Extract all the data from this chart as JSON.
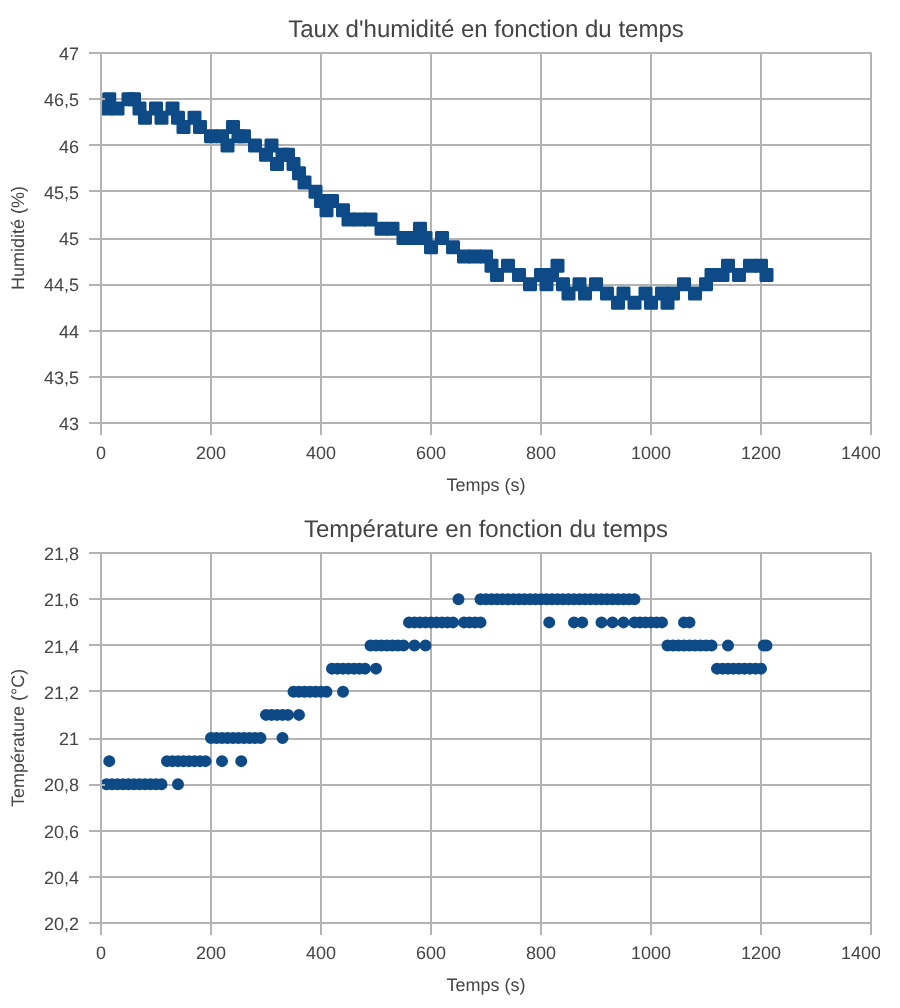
{
  "chart_data": [
    {
      "type": "scatter",
      "title": "Taux d'humidité en fonction du temps",
      "xlabel": "Temps (s)",
      "ylabel": "Humidité (%)",
      "xlim": [
        0,
        1400
      ],
      "xticks": [
        0,
        200,
        400,
        600,
        800,
        1000,
        1200,
        1400
      ],
      "ylim": [
        43,
        47
      ],
      "yticks": [
        {
          "value": 43,
          "label": "43"
        },
        {
          "value": 43.5,
          "label": "43,5"
        },
        {
          "value": 44,
          "label": "44"
        },
        {
          "value": 44.5,
          "label": "44,5"
        },
        {
          "value": 45,
          "label": "45"
        },
        {
          "value": 45.5,
          "label": "45,5"
        },
        {
          "value": 46,
          "label": "46"
        },
        {
          "value": 46.5,
          "label": "46,5"
        },
        {
          "value": 47,
          "label": "47"
        }
      ],
      "grid": true,
      "marker": "square",
      "x": [
        10,
        15,
        30,
        50,
        60,
        70,
        80,
        100,
        110,
        130,
        140,
        150,
        170,
        180,
        200,
        220,
        230,
        240,
        250,
        260,
        280,
        300,
        310,
        320,
        330,
        340,
        350,
        360,
        370,
        390,
        400,
        410,
        420,
        440,
        450,
        470,
        490,
        510,
        530,
        550,
        570,
        580,
        590,
        600,
        620,
        640,
        660,
        680,
        700,
        710,
        720,
        740,
        760,
        780,
        800,
        810,
        820,
        830,
        840,
        850,
        870,
        880,
        900,
        920,
        940,
        950,
        970,
        990,
        1000,
        1020,
        1030,
        1040,
        1060,
        1080,
        1100,
        1110,
        1130,
        1140,
        1160,
        1180,
        1200,
        1210
      ],
      "series": [
        {
          "color": "#0d4a86",
          "values": [
            46.4,
            46.5,
            46.4,
            46.5,
            46.5,
            46.4,
            46.3,
            46.4,
            46.3,
            46.4,
            46.3,
            46.2,
            46.3,
            46.2,
            46.1,
            46.1,
            46.0,
            46.2,
            46.1,
            46.1,
            46.0,
            45.9,
            46.0,
            45.8,
            45.9,
            45.9,
            45.8,
            45.7,
            45.6,
            45.5,
            45.4,
            45.3,
            45.4,
            45.3,
            45.2,
            45.2,
            45.2,
            45.1,
            45.1,
            45.0,
            45.0,
            45.1,
            45.0,
            44.9,
            45.0,
            44.9,
            44.8,
            44.8,
            44.8,
            44.7,
            44.6,
            44.7,
            44.6,
            44.5,
            44.6,
            44.5,
            44.6,
            44.7,
            44.5,
            44.4,
            44.5,
            44.4,
            44.5,
            44.4,
            44.3,
            44.4,
            44.3,
            44.4,
            44.3,
            44.4,
            44.3,
            44.4,
            44.5,
            44.4,
            44.5,
            44.6,
            44.6,
            44.7,
            44.6,
            44.7,
            44.7,
            44.6
          ]
        }
      ]
    },
    {
      "type": "scatter",
      "title": "Température en fonction du temps",
      "xlabel": "Temps (s)",
      "ylabel": "Température (°C)",
      "xlim": [
        0,
        1400
      ],
      "xticks": [
        0,
        200,
        400,
        600,
        800,
        1000,
        1200,
        1400
      ],
      "ylim": [
        20.2,
        21.8
      ],
      "yticks": [
        {
          "value": 20.2,
          "label": "20,2"
        },
        {
          "value": 20.4,
          "label": "20,4"
        },
        {
          "value": 20.6,
          "label": "20,6"
        },
        {
          "value": 20.8,
          "label": "20,8"
        },
        {
          "value": 21,
          "label": "21"
        },
        {
          "value": 21.2,
          "label": "21,2"
        },
        {
          "value": 21.4,
          "label": "21,4"
        },
        {
          "value": 21.6,
          "label": "21,6"
        },
        {
          "value": 21.8,
          "label": "21,8"
        }
      ],
      "grid": true,
      "marker": "circle",
      "x": [
        10,
        20,
        30,
        40,
        50,
        60,
        70,
        80,
        90,
        100,
        110,
        120,
        130,
        140,
        150,
        160,
        170,
        180,
        190,
        200,
        210,
        220,
        230,
        240,
        250,
        260,
        270,
        280,
        290,
        300,
        310,
        320,
        330,
        340,
        350,
        360,
        370,
        380,
        390,
        400,
        410,
        420,
        430,
        440,
        450,
        460,
        470,
        480,
        490,
        500,
        510,
        520,
        530,
        540,
        550,
        560,
        570,
        580,
        590,
        600,
        610,
        620,
        630,
        640,
        650,
        660,
        670,
        680,
        690,
        700,
        710,
        720,
        730,
        740,
        750,
        760,
        770,
        780,
        790,
        800,
        810,
        820,
        830,
        840,
        850,
        860,
        870,
        880,
        890,
        900,
        910,
        920,
        930,
        940,
        950,
        960,
        970,
        980,
        990,
        1000,
        1010,
        1020,
        1030,
        1040,
        1050,
        1060,
        1070,
        1080,
        1090,
        1100,
        1110,
        1120,
        1130,
        1140,
        1150,
        1160,
        1170,
        1180,
        1190,
        1200,
        1210,
        15,
        140,
        220,
        255,
        330,
        360,
        440,
        500,
        570,
        590,
        690,
        815,
        860,
        875,
        910,
        930,
        950,
        970,
        1060,
        1070,
        1140,
        1205
      ],
      "series": [
        {
          "color": "#0d4a86",
          "values": [
            20.8,
            20.8,
            20.8,
            20.8,
            20.8,
            20.8,
            20.8,
            20.8,
            20.8,
            20.8,
            20.8,
            20.9,
            20.9,
            20.9,
            20.9,
            20.9,
            20.9,
            20.9,
            20.9,
            21.0,
            21.0,
            21.0,
            21.0,
            21.0,
            21.0,
            21.0,
            21.0,
            21.0,
            21.0,
            21.1,
            21.1,
            21.1,
            21.1,
            21.1,
            21.2,
            21.2,
            21.2,
            21.2,
            21.2,
            21.2,
            21.2,
            21.3,
            21.3,
            21.3,
            21.3,
            21.3,
            21.3,
            21.3,
            21.4,
            21.4,
            21.4,
            21.4,
            21.4,
            21.4,
            21.4,
            21.5,
            21.5,
            21.5,
            21.5,
            21.5,
            21.5,
            21.5,
            21.5,
            21.5,
            21.6,
            21.5,
            21.5,
            21.5,
            21.6,
            21.6,
            21.6,
            21.6,
            21.6,
            21.6,
            21.6,
            21.6,
            21.6,
            21.6,
            21.6,
            21.6,
            21.6,
            21.6,
            21.6,
            21.6,
            21.6,
            21.6,
            21.6,
            21.6,
            21.6,
            21.6,
            21.6,
            21.6,
            21.6,
            21.6,
            21.6,
            21.6,
            21.5,
            21.5,
            21.5,
            21.5,
            21.5,
            21.5,
            21.4,
            21.4,
            21.4,
            21.4,
            21.4,
            21.4,
            21.4,
            21.4,
            21.4,
            21.3,
            21.3,
            21.3,
            21.3,
            21.3,
            21.3,
            21.3,
            21.3,
            21.3,
            21.4,
            20.9,
            20.8,
            20.9,
            20.9,
            21.0,
            21.1,
            21.2,
            21.3,
            21.4,
            21.4,
            21.5,
            21.5,
            21.5,
            21.5,
            21.5,
            21.5,
            21.5,
            21.6,
            21.5,
            21.5,
            21.4,
            21.4
          ]
        }
      ]
    }
  ]
}
